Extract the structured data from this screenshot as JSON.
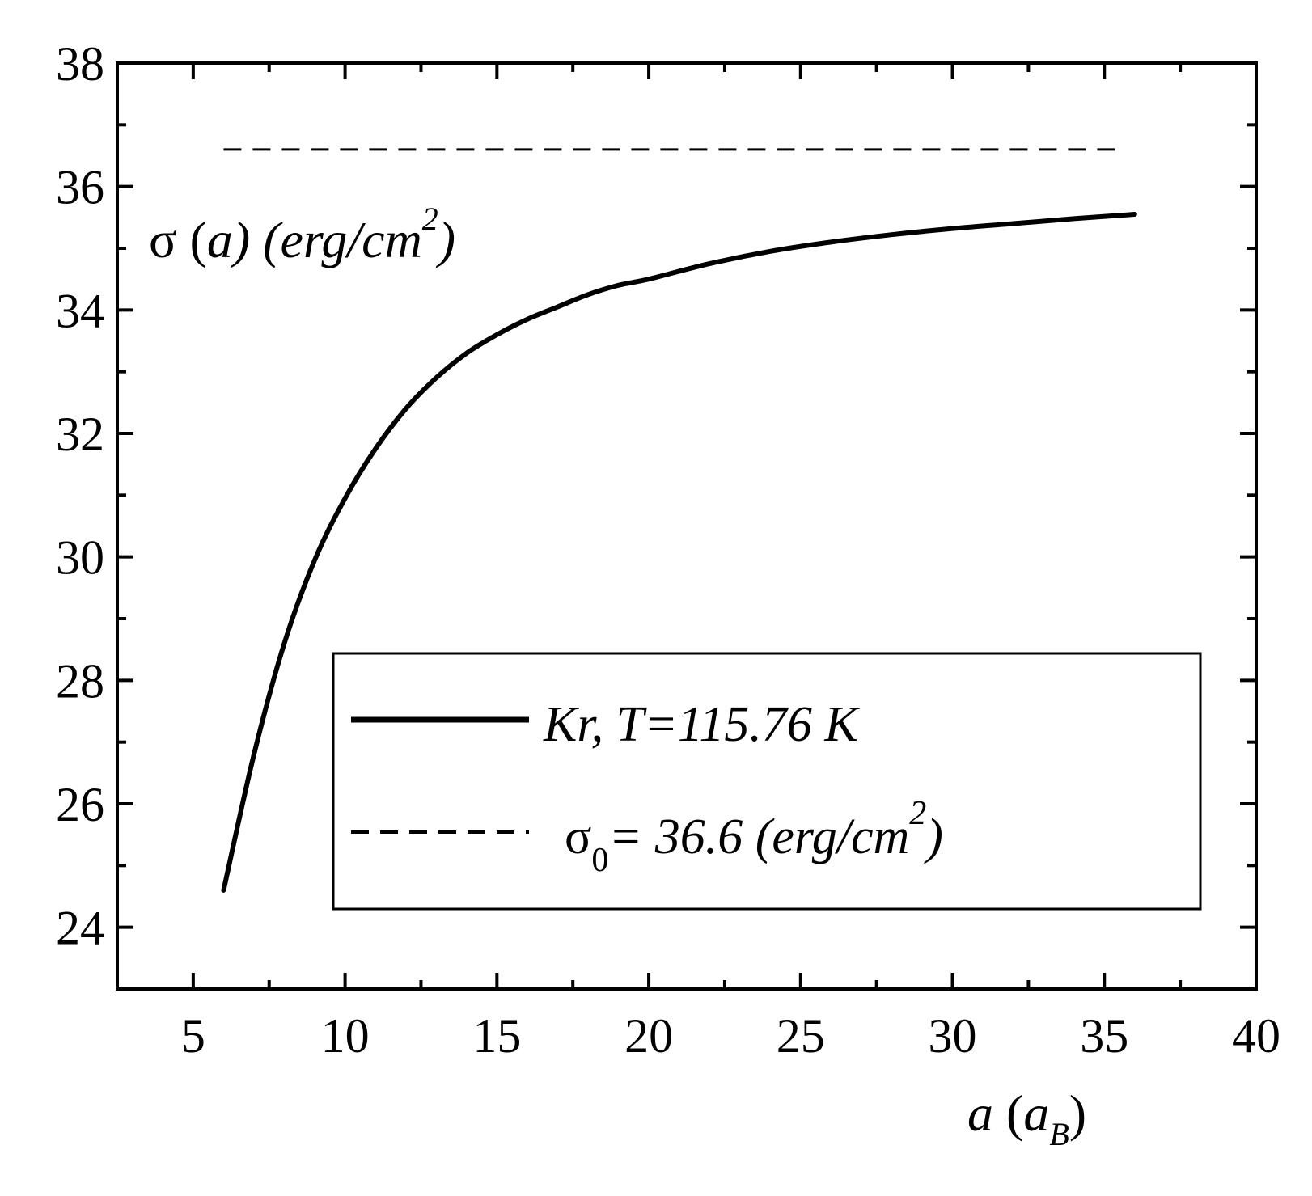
{
  "chart_data": {
    "type": "line",
    "xlabel": {
      "var": "a",
      "open": " (",
      "sym": "a",
      "sub": "B",
      "close": ")"
    },
    "ylabel": {
      "sigma": "σ",
      "open": " (",
      "var": "a",
      "mid": ") (erg/cm",
      "sup": "2",
      "close": ")"
    },
    "xlim": [
      2.5,
      40
    ],
    "ylim": [
      23,
      38
    ],
    "x_ticks": [
      5,
      10,
      15,
      20,
      25,
      30,
      35,
      40
    ],
    "x_minor_ticks": [
      7.5,
      12.5,
      17.5,
      22.5,
      27.5,
      32.5,
      37.5
    ],
    "y_ticks": [
      24,
      26,
      28,
      30,
      32,
      34,
      36,
      38
    ],
    "y_minor_ticks": [
      25,
      27,
      29,
      31,
      33,
      35,
      37
    ],
    "series": [
      {
        "name": "Kr, T=115.76 K",
        "style": "solid",
        "color": "#000000",
        "x": [
          6,
          7,
          8,
          9,
          10,
          11,
          12,
          13,
          14,
          15,
          16,
          17,
          18,
          19,
          20,
          22,
          24,
          26,
          28,
          30,
          32,
          34,
          36
        ],
        "y": [
          24.6,
          26.8,
          28.6,
          29.95,
          30.95,
          31.75,
          32.4,
          32.9,
          33.3,
          33.6,
          33.85,
          34.05,
          34.25,
          34.4,
          34.5,
          34.75,
          34.95,
          35.1,
          35.22,
          35.32,
          35.4,
          35.48,
          35.55
        ]
      },
      {
        "name": "σ0 = 36.6 (erg/cm2)",
        "style": "dashed",
        "color": "#000000",
        "x": [
          6,
          35.5
        ],
        "y": [
          36.6,
          36.6
        ]
      }
    ],
    "legend": {
      "placement": "lower-right",
      "entries": [
        {
          "label": "Kr, T=115.76 K"
        },
        {
          "sigma": "σ",
          "sub": "0",
          "eq": "= 36.6  (erg/cm",
          "sup": "2",
          "close": ")"
        }
      ]
    },
    "grid": false
  }
}
